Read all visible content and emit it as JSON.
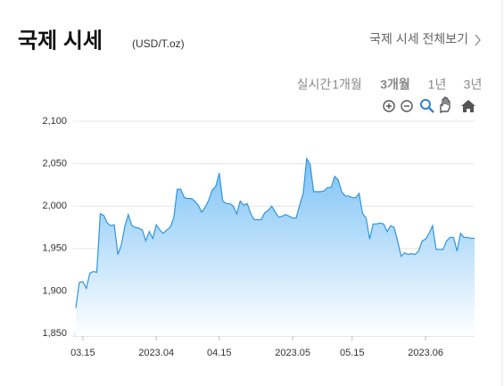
{
  "header": {
    "link": "국제 시세 전체보기"
  },
  "tabs": [
    "실시간",
    "1개월",
    "3개월",
    "1년",
    "3년"
  ],
  "selected_tab": 2,
  "chart_data": {
    "type": "area",
    "title": "국제 시세",
    "subtitle": "(USD/T.oz)",
    "color": "#2f95e0",
    "grid": true,
    "ylim": [
      1850,
      2100
    ],
    "yticks": [
      {
        "value": 1850,
        "label": "1,850"
      },
      {
        "value": 1900,
        "label": "1,900"
      },
      {
        "value": 1950,
        "label": "1,950"
      },
      {
        "value": 2000,
        "label": "2,000"
      },
      {
        "value": 2050,
        "label": "2,050"
      },
      {
        "value": 2100,
        "label": "2,100"
      }
    ],
    "categories": [
      null,
      null,
      "03.15",
      null,
      null,
      null,
      null,
      null,
      null,
      null,
      null,
      null,
      null,
      null,
      null,
      null,
      null,
      null,
      null,
      null,
      null,
      null,
      null,
      "2023.04",
      null,
      null,
      null,
      null,
      null,
      null,
      null,
      null,
      null,
      null,
      null,
      null,
      null,
      null,
      null,
      null,
      null,
      "04.15",
      null,
      null,
      null,
      null,
      null,
      null,
      null,
      null,
      null,
      null,
      null,
      null,
      null,
      null,
      null,
      null,
      null,
      null,
      null,
      null,
      "2023.05",
      null,
      null,
      null,
      null,
      null,
      null,
      null,
      null,
      null,
      null,
      null,
      null,
      null,
      null,
      null,
      null,
      "05.15",
      null,
      null,
      null,
      null,
      null,
      null,
      null,
      null,
      null,
      null,
      null,
      null,
      null,
      null,
      null,
      null,
      null,
      null,
      null,
      null,
      "2023.06",
      null,
      null,
      null,
      null,
      null,
      null,
      null,
      null,
      null,
      null,
      null,
      null,
      null,
      null
    ],
    "values": [
      1880,
      1910,
      1911,
      1903,
      1921,
      1923,
      1922,
      1991,
      1989,
      1980,
      1977,
      1978,
      1943,
      1954,
      1976,
      1990,
      1977,
      1975,
      1974,
      1972,
      1959,
      1970,
      1962,
      1978,
      1972,
      1968,
      1972,
      1975,
      1986,
      2020,
      2020,
      2010,
      2009,
      2009,
      2006,
      2001,
      1993,
      1999,
      2007,
      2019,
      2023,
      2039,
      2006,
      2003,
      2003,
      2000,
      1991,
      2006,
      2001,
      2003,
      1991,
      1984,
      1984,
      1984,
      1992,
      1995,
      2000,
      1993,
      1987,
      1988,
      1990,
      1988,
      1986,
      1986,
      2001,
      2015,
      2056,
      2049,
      2017,
      2017,
      2017,
      2018,
      2022,
      2022,
      2035,
      2031,
      2017,
      2012,
      2012,
      2010,
      2010,
      2015,
      1991,
      1986,
      1961,
      1979,
      1979,
      1980,
      1979,
      1970,
      1977,
      1975,
      1959,
      1941,
      1945,
      1943,
      1944,
      1943,
      1947,
      1959,
      1961,
      1968,
      1977,
      1949,
      1949,
      1949,
      1959,
      1963,
      1963,
      1947,
      1968,
      1963,
      1963,
      1962,
      1962
    ]
  }
}
